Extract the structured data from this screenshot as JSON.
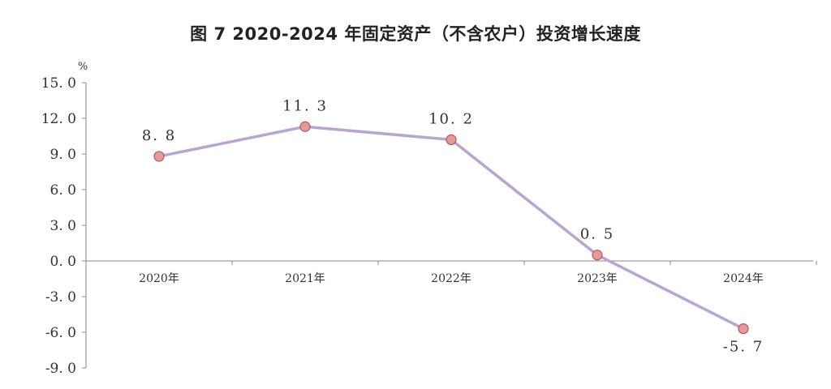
{
  "chart_data": {
    "type": "line",
    "title": "图 7   2020-2024 年固定资产（不含农户）投资增长速度",
    "ylabel": "%",
    "xlabel": "",
    "categories": [
      "2020年",
      "2021年",
      "2022年",
      "2023年",
      "2024年"
    ],
    "series": [
      {
        "values": [
          8.8,
          11.3,
          10.2,
          0.5,
          -5.7
        ]
      }
    ],
    "data_labels": [
      "8. 8",
      "11. 3",
      "10. 2",
      "0. 5",
      "-5. 7"
    ],
    "yticks": [
      15.0,
      12.0,
      9.0,
      6.0,
      3.0,
      0.0,
      -3.0,
      -6.0,
      -9.0
    ],
    "ytick_labels": [
      "15. 0",
      "12. 0",
      "9. 0",
      "6. 0",
      "3. 0",
      "0. 0",
      "-3. 0",
      "-6. 0",
      "-9. 0"
    ],
    "ylim": [
      -9,
      15
    ],
    "grid": false,
    "legend": "none",
    "colors": {
      "line": "#b8a6cf",
      "marker_fill": "#e39a9a",
      "marker_stroke": "#b25a5a",
      "axis": "#888888"
    }
  }
}
